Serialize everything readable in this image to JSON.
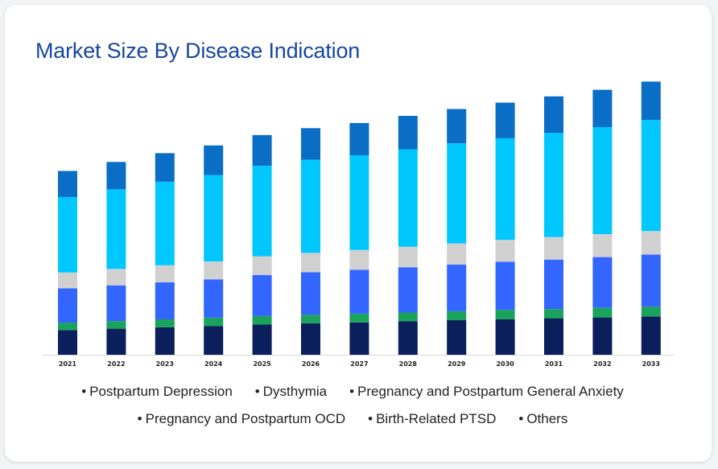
{
  "title": "Market Size By Disease Indication",
  "chart_data": {
    "type": "bar",
    "stacked": true,
    "title": "Market Size By Disease Indication",
    "xlabel": "",
    "ylabel": "",
    "ylim": [
      0,
      100
    ],
    "categories": [
      "2021",
      "2022",
      "2023",
      "2024",
      "2025",
      "2026",
      "2027",
      "2028",
      "2029",
      "2030",
      "2031",
      "2032",
      "2033"
    ],
    "series": [
      {
        "name": "Postpartum Depression",
        "color": "#0a1f5c",
        "values": [
          9.0,
          9.5,
          10.0,
          10.5,
          11.0,
          11.5,
          11.8,
          12.2,
          12.6,
          13.0,
          13.3,
          13.6,
          14.0
        ]
      },
      {
        "name": "Dysthymia",
        "color": "#1aa35a",
        "values": [
          2.7,
          2.8,
          2.9,
          3.0,
          3.1,
          3.1,
          3.2,
          3.2,
          3.3,
          3.4,
          3.4,
          3.5,
          3.5
        ]
      },
      {
        "name": "Pregnancy and Postpartum General Anxiety",
        "color": "#3366ff",
        "values": [
          12.5,
          13.0,
          13.5,
          14.0,
          15.0,
          15.5,
          16.0,
          16.5,
          17.0,
          17.5,
          18.0,
          18.5,
          19.0
        ]
      },
      {
        "name": "Pregnancy and Postpartum OCD",
        "color": "#d0d0d0",
        "values": [
          5.8,
          6.0,
          6.2,
          6.5,
          6.8,
          7.0,
          7.2,
          7.5,
          7.7,
          8.0,
          8.2,
          8.4,
          8.6
        ]
      },
      {
        "name": "Birth-Related PTSD",
        "color": "#00c8ff",
        "values": [
          27.5,
          29.0,
          30.5,
          31.5,
          33.0,
          34.0,
          34.5,
          35.5,
          36.5,
          37.0,
          38.0,
          39.0,
          40.5
        ]
      },
      {
        "name": "Others",
        "color": "#0a6ec6",
        "values": [
          9.5,
          10.0,
          10.4,
          10.8,
          11.2,
          11.5,
          11.8,
          12.2,
          12.5,
          13.0,
          13.3,
          13.6,
          14.0
        ]
      }
    ],
    "legend_position": "bottom",
    "grid": false
  }
}
